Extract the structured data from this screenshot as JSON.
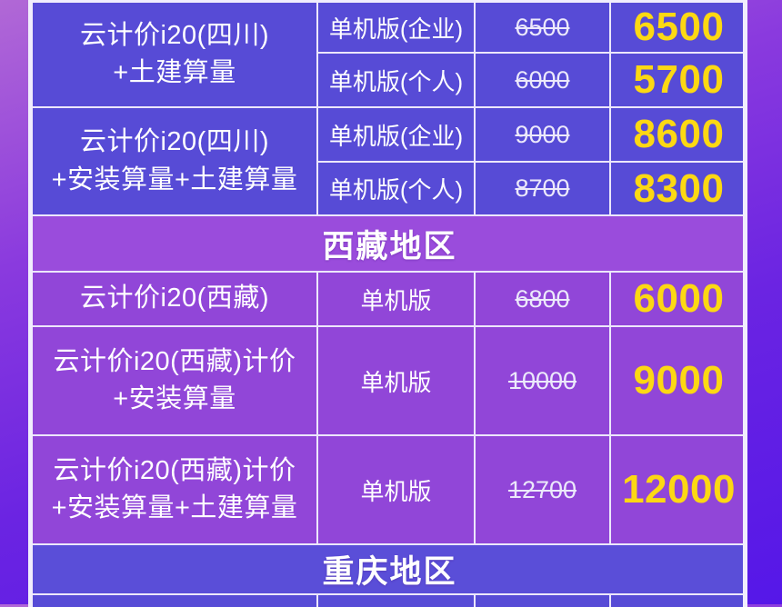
{
  "colors": {
    "cell_indigo": "#574bd6",
    "cell_violet": "#9146d8",
    "header_violet": "#9a4cdc",
    "header_indigo": "#5a4ed8",
    "promo_price_yellow": "#fcd813",
    "original_price_white": "#ece9fb",
    "grid_line": "#ece7fb",
    "background_gradient": [
      "#b168d6",
      "#7c2ce0",
      "#5517e8"
    ]
  },
  "pricing_table": {
    "sichuan_section": {
      "products": [
        {
          "name_line1": "云计价i20(四川)",
          "name_line2": "+土建算量",
          "variants": [
            {
              "version": "单机版(企业)",
              "original_price": "6500",
              "promo_price": "6500"
            },
            {
              "version": "单机版(个人)",
              "original_price": "6000",
              "promo_price": "5700"
            }
          ]
        },
        {
          "name_line1": "云计价i20(四川)",
          "name_line2": "+安装算量+土建算量",
          "variants": [
            {
              "version": "单机版(企业)",
              "original_price": "9000",
              "promo_price": "8600"
            },
            {
              "version": "单机版(个人)",
              "original_price": "8700",
              "promo_price": "8300"
            }
          ]
        }
      ]
    },
    "tibet_section": {
      "header": "西藏地区",
      "rows": [
        {
          "name_line1": "云计价i20(西藏)",
          "name_line2": "",
          "version": "单机版",
          "original_price": "6800",
          "promo_price": "6000"
        },
        {
          "name_line1": "云计价i20(西藏)计价",
          "name_line2": "+安装算量",
          "version": "单机版",
          "original_price": "10000",
          "promo_price": "9000"
        },
        {
          "name_line1": "云计价i20(西藏)计价",
          "name_line2": "+安装算量+土建算量",
          "version": "单机版",
          "original_price": "12700",
          "promo_price": "12000"
        }
      ]
    },
    "chongqing_section": {
      "header": "重庆地区"
    }
  }
}
